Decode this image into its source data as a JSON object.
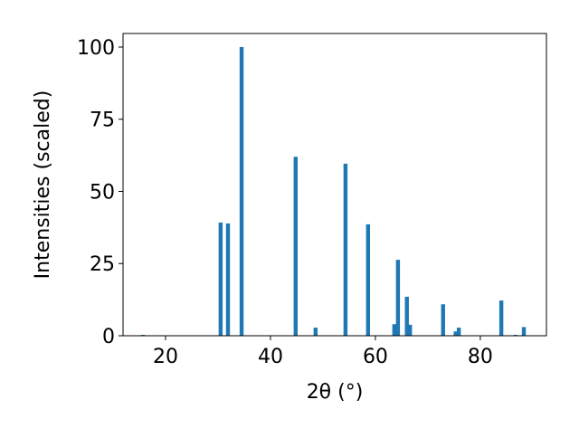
{
  "chart_data": {
    "type": "bar",
    "x_label": "2θ (°)",
    "y_label": "Intensities (scaled)",
    "x": [
      15.7,
      30.5,
      31.9,
      34.5,
      44.8,
      48.6,
      54.3,
      58.6,
      63.6,
      64.3,
      66.0,
      66.6,
      72.9,
      75.3,
      75.9,
      84.0,
      86.7,
      88.3
    ],
    "values": [
      0.3,
      39.2,
      38.9,
      100,
      62,
      2.8,
      59.6,
      38.6,
      4,
      26.3,
      13.5,
      3.8,
      10.9,
      1.5,
      2.8,
      12.2,
      0.3,
      3
    ],
    "color": "#1f77b4",
    "xlim": [
      11.9,
      92.6
    ],
    "xticks": [
      20,
      40,
      60,
      80
    ],
    "ylim": [
      0,
      104.7
    ],
    "yticks": [
      0,
      25,
      50,
      75,
      100
    ]
  }
}
